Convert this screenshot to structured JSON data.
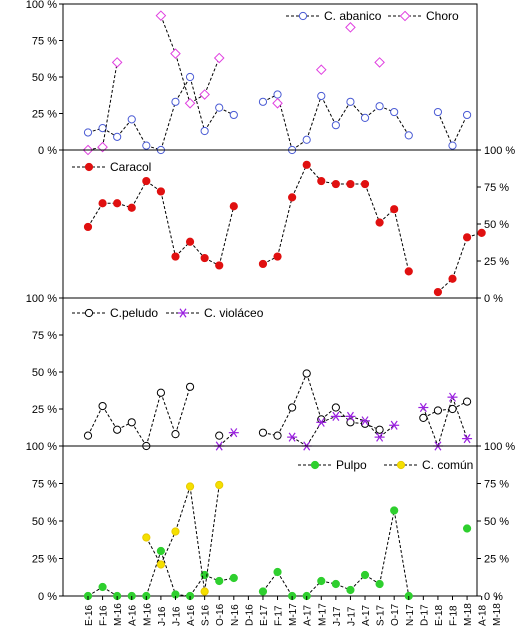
{
  "chart_data": {
    "type": "line",
    "x_labels": [
      "E-16",
      "F-16",
      "M-16",
      "A-16",
      "M-16",
      "J-16",
      "J-16",
      "A-16",
      "S-16",
      "O-16",
      "N-16",
      "D-16",
      "E-17",
      "F-17",
      "M-17",
      "A-17",
      "M-17",
      "J-17",
      "J-17",
      "A-17",
      "S-17",
      "O-17",
      "N-17",
      "D-17",
      "E-18",
      "F-18",
      "M-18",
      "A-18",
      "M-18"
    ],
    "panels": [
      {
        "id": "p1",
        "y_side": "left",
        "ylim": [
          0,
          100
        ],
        "ticks": [
          "0 %",
          "25 %",
          "50 %",
          "75 %",
          "100 %"
        ],
        "legend_position": "top-right",
        "series": [
          {
            "name": "C. abanico",
            "marker": "circle",
            "color": "#4a5bd4",
            "fill": "#ffffff",
            "values": [
              12,
              15,
              9,
              21,
              3,
              0,
              33,
              50,
              13,
              29,
              24,
              null,
              33,
              38,
              0,
              7,
              37,
              17,
              33,
              22,
              30,
              26,
              10,
              null,
              26,
              3,
              24
            ]
          },
          {
            "name": "Choro",
            "marker": "diamond",
            "color": "#e040e0",
            "fill": "#ffffff",
            "values": [
              0,
              2,
              60,
              null,
              null,
              92,
              66,
              32,
              38,
              63,
              null,
              null,
              null,
              32,
              null,
              null,
              55,
              null,
              84,
              null,
              60,
              null,
              null,
              null,
              null,
              null,
              null
            ]
          }
        ]
      },
      {
        "id": "p2",
        "y_side": "right",
        "ylim": [
          0,
          100
        ],
        "ticks": [
          "0 %",
          "25 %",
          "50 %",
          "75 %",
          "100 %"
        ],
        "legend_position": "top-left",
        "series": [
          {
            "name": "Caracol",
            "marker": "circle",
            "color": "#e01010",
            "fill": "#e01010",
            "values": [
              48,
              64,
              64,
              61,
              79,
              72,
              28,
              38,
              27,
              22,
              62,
              null,
              23,
              28,
              68,
              90,
              79,
              77,
              77,
              77,
              51,
              60,
              18,
              null,
              4,
              13,
              41,
              44
            ]
          }
        ]
      },
      {
        "id": "p3",
        "y_side": "left",
        "ylim": [
          0,
          100
        ],
        "ticks": [
          "25 %",
          "50 %",
          "75 %",
          "100 %"
        ],
        "legend_position": "top-left",
        "series": [
          {
            "name": "C.peludo",
            "marker": "circle",
            "color": "#000000",
            "fill": "#ffffff",
            "values": [
              7,
              27,
              11,
              16,
              0,
              36,
              8,
              40,
              null,
              7,
              null,
              null,
              9,
              7,
              26,
              49,
              18,
              26,
              16,
              15,
              11,
              null,
              null,
              19,
              24,
              25,
              30
            ]
          },
          {
            "name": "C. violáceo",
            "marker": "asterisk",
            "color": "#9a20e0",
            "fill": "none",
            "values": [
              null,
              null,
              null,
              null,
              null,
              null,
              null,
              null,
              null,
              0,
              9,
              null,
              null,
              null,
              6,
              0,
              16,
              20,
              20,
              17,
              6,
              14,
              null,
              26,
              0,
              33,
              5
            ]
          }
        ]
      },
      {
        "id": "p4",
        "y_side": "both",
        "ylim": [
          0,
          100
        ],
        "ticks_left": [
          "0 %",
          "25 %",
          "50 %",
          "75 %",
          "100 %"
        ],
        "ticks_right": [
          "0 %",
          "25 %",
          "50 %",
          "75 %",
          "100 %"
        ],
        "legend_position": "top-right",
        "series": [
          {
            "name": "Pulpo",
            "marker": "circle",
            "color": "#2ecf2e",
            "fill": "#2ecf2e",
            "values": [
              0,
              6,
              0,
              0,
              0,
              30,
              1,
              0,
              14,
              10,
              12,
              null,
              3,
              16,
              0,
              0,
              10,
              8,
              4,
              14,
              8,
              57,
              0,
              null,
              null,
              null,
              45
            ]
          },
          {
            "name": "C. común",
            "marker": "circle",
            "color": "#e8c800",
            "fill": "#f4e000",
            "values": [
              null,
              null,
              null,
              null,
              39,
              21,
              43,
              73,
              3,
              74,
              null,
              null,
              null,
              null,
              null,
              null,
              null,
              null,
              null,
              null,
              null,
              null,
              null,
              null,
              null,
              null,
              null
            ]
          }
        ]
      }
    ]
  }
}
